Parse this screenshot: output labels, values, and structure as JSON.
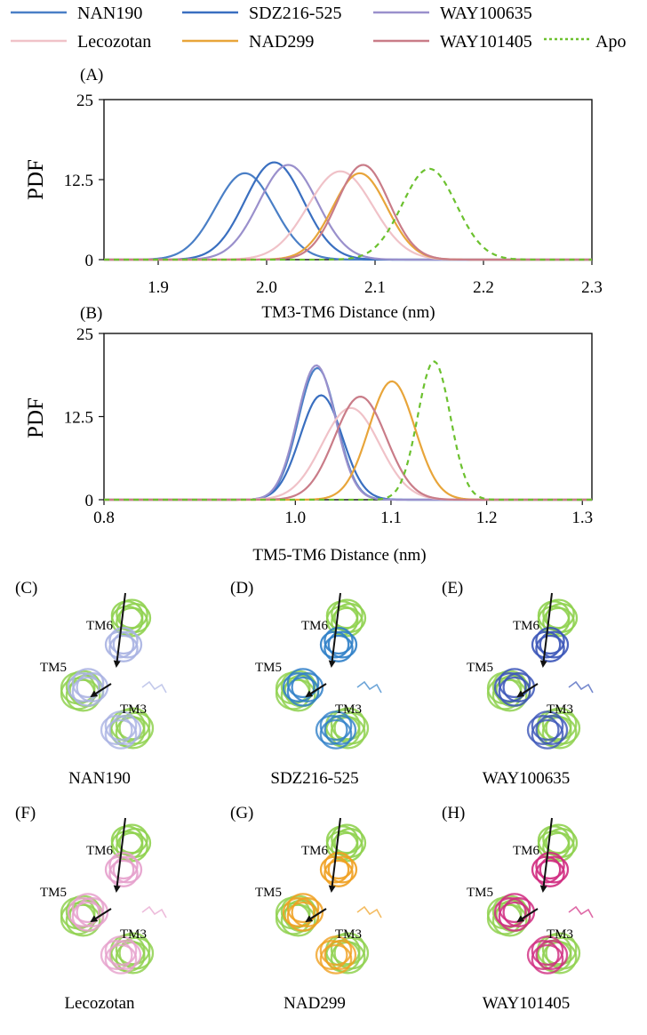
{
  "legend": [
    {
      "name": "NAN190",
      "color": "#4a7fc6",
      "dash": false
    },
    {
      "name": "SDZ216-525",
      "color": "#3a6fc0",
      "dash": false
    },
    {
      "name": "WAY100635",
      "color": "#9a90cc",
      "dash": false
    },
    {
      "name": "Lecozotan",
      "color": "#f0c2c8",
      "dash": false
    },
    {
      "name": "NAD299",
      "color": "#e8a53a",
      "dash": false
    },
    {
      "name": "WAY101405",
      "color": "#c97c88",
      "dash": false
    },
    {
      "name": "Apo",
      "color": "#6cc12f",
      "dash": true
    }
  ],
  "chart_data": [
    {
      "type": "line",
      "panel": "(A)",
      "xlabel": "TM3-TM6 Distance (nm)",
      "ylabel": "PDF",
      "xlim": [
        1.85,
        2.3
      ],
      "ylim": [
        0,
        25
      ],
      "xticks": [
        "1.9",
        "2.0",
        "2.1",
        "2.2",
        "2.3"
      ],
      "xtick_values": [
        1.9,
        2.0,
        2.1,
        2.2,
        2.3
      ],
      "yticks": [
        "0",
        "12.5",
        "25"
      ],
      "ytick_values": [
        0,
        12.5,
        25
      ],
      "series": [
        {
          "name": "NAN190",
          "mu": 1.98,
          "sigma": 0.027,
          "peak": 13.5
        },
        {
          "name": "SDZ216-525",
          "mu": 2.007,
          "sigma": 0.027,
          "peak": 15.2
        },
        {
          "name": "WAY100635",
          "mu": 2.02,
          "sigma": 0.027,
          "peak": 14.8
        },
        {
          "name": "Lecozotan",
          "mu": 2.068,
          "sigma": 0.03,
          "peak": 13.8
        },
        {
          "name": "NAD299",
          "mu": 2.086,
          "sigma": 0.025,
          "peak": 13.5
        },
        {
          "name": "WAY101405",
          "mu": 2.089,
          "sigma": 0.024,
          "peak": 14.8
        },
        {
          "name": "Apo",
          "mu": 2.15,
          "sigma": 0.025,
          "peak": 14.2
        }
      ]
    },
    {
      "type": "line",
      "panel": "(B)",
      "xlabel": "TM5-TM6 Distance (nm)",
      "ylabel": "PDF",
      "xlim": [
        0.8,
        1.31
      ],
      "ylim": [
        0,
        25
      ],
      "xticks": [
        "0.8",
        "1.0",
        "1.1",
        "1.2",
        "1.3"
      ],
      "xtick_values": [
        0.8,
        1.0,
        1.1,
        1.2,
        1.3
      ],
      "yticks": [
        "0",
        "12.5",
        "25"
      ],
      "ytick_values": [
        0,
        12.5,
        25
      ],
      "series": [
        {
          "name": "NAN190",
          "mu": 1.023,
          "sigma": 0.02,
          "peak": 19.8
        },
        {
          "name": "SDZ216-525",
          "mu": 1.027,
          "sigma": 0.022,
          "peak": 15.7
        },
        {
          "name": "WAY100635",
          "mu": 1.022,
          "sigma": 0.02,
          "peak": 20.2
        },
        {
          "name": "Lecozotan",
          "mu": 1.058,
          "sigma": 0.03,
          "peak": 13.8
        },
        {
          "name": "NAD299",
          "mu": 1.101,
          "sigma": 0.024,
          "peak": 17.8
        },
        {
          "name": "WAY101405",
          "mu": 1.068,
          "sigma": 0.027,
          "peak": 15.5
        },
        {
          "name": "Apo",
          "mu": 1.145,
          "sigma": 0.017,
          "peak": 20.8
        }
      ]
    }
  ],
  "structures": [
    {
      "label": "(C)",
      "caption": "NAN190",
      "helix": "#a9b2e2",
      "tm": [
        "TM6",
        "TM5",
        "TM3"
      ]
    },
    {
      "label": "(D)",
      "caption": "SDZ216-525",
      "helix": "#2f7fc8",
      "tm": [
        "TM6",
        "TM5",
        "TM3"
      ]
    },
    {
      "label": "(E)",
      "caption": "WAY100635",
      "helix": "#3b55b8",
      "tm": [
        "TM6",
        "TM5",
        "TM3"
      ]
    },
    {
      "label": "(F)",
      "caption": "Lecozotan",
      "helix": "#e6a0cc",
      "tm": [
        "TM6",
        "TM5",
        "TM3"
      ]
    },
    {
      "label": "(G)",
      "caption": "NAD299",
      "helix": "#f0a020",
      "tm": [
        "TM6",
        "TM5",
        "TM3"
      ]
    },
    {
      "label": "(H)",
      "caption": "WAY101405",
      "helix": "#d02a80",
      "tm": [
        "TM6",
        "TM5",
        "TM3"
      ]
    }
  ]
}
